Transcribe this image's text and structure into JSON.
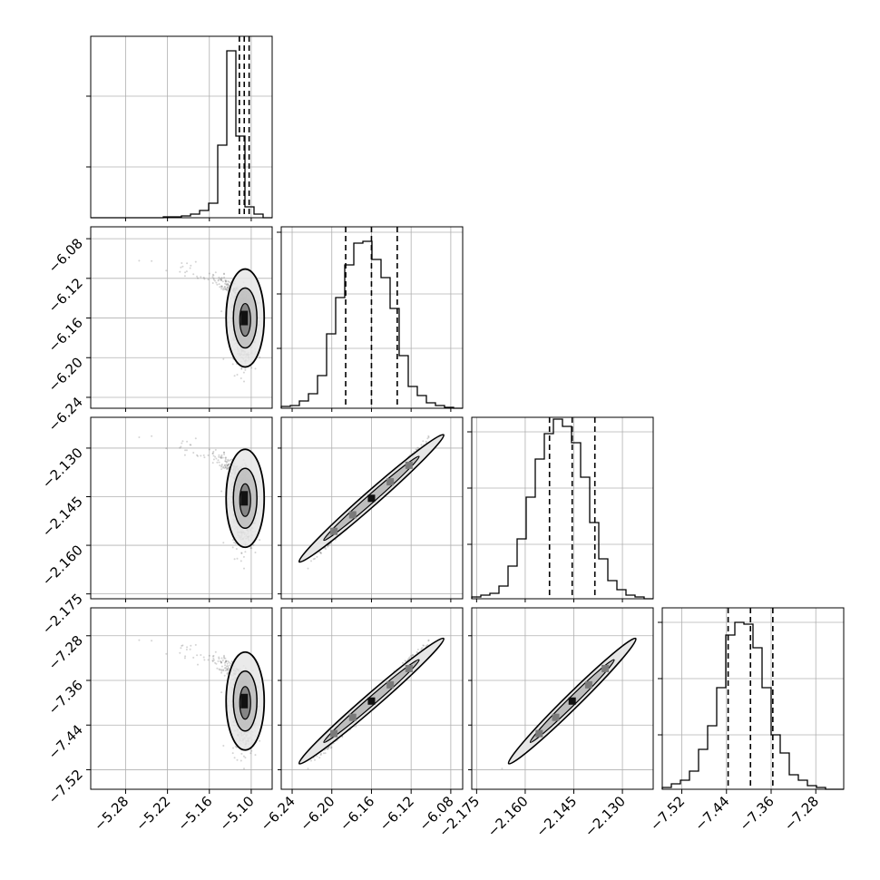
{
  "chart_data": {
    "type": "corner",
    "grid": true,
    "parameters": [
      {
        "range": [
          -5.33,
          -5.07
        ],
        "hist_y_ticks": [
          0.28,
          0.67
        ],
        "hist_bins": [
          0,
          0,
          0,
          0,
          0,
          0,
          0,
          0,
          0.005,
          0.005,
          0.01,
          0.02,
          0.04,
          0.08,
          0.4,
          0.92,
          0.45,
          0.06,
          0.02,
          0
        ],
        "quantiles": [
          -5.117,
          -5.11,
          -5.103
        ],
        "ticks": [
          -5.28,
          -5.22,
          -5.16,
          -5.1
        ],
        "tick_labels": [
          "−5.28",
          "−5.22",
          "−5.16",
          "−5.10"
        ]
      },
      {
        "range": [
          -6.251,
          -6.068
        ],
        "hist_y_ticks": [
          0.33,
          0.63,
          0.97
        ],
        "hist_bins": [
          0.01,
          0.015,
          0.04,
          0.08,
          0.18,
          0.41,
          0.61,
          0.79,
          0.91,
          0.92,
          0.82,
          0.72,
          0.55,
          0.29,
          0.12,
          0.07,
          0.03,
          0.015,
          0.005,
          0.0
        ],
        "quantiles": [
          -6.186,
          -6.16,
          -6.134
        ],
        "ticks": [
          -6.08,
          -6.12,
          -6.16,
          -6.2,
          -6.24
        ],
        "tick_labels": [
          "−6.08",
          "−6.12",
          "−6.16",
          "−6.20",
          "−6.24"
        ]
      },
      {
        "range": [
          -2.1765,
          -2.1205
        ],
        "hist_y_ticks": [
          0.3,
          0.61,
          0.92
        ],
        "hist_bins": [
          0.01,
          0.02,
          0.03,
          0.07,
          0.18,
          0.33,
          0.56,
          0.77,
          0.91,
          0.99,
          0.95,
          0.86,
          0.67,
          0.42,
          0.22,
          0.1,
          0.05,
          0.02,
          0.01,
          0.0
        ],
        "quantiles": [
          -2.1525,
          -2.1455,
          -2.1385
        ],
        "ticks": [
          -2.13,
          -2.145,
          -2.16,
          -2.175
        ],
        "tick_labels": [
          "−2.130",
          "−2.145",
          "−2.160",
          "−2.175"
        ]
      },
      {
        "range": [
          -7.555,
          -7.23
        ],
        "hist_y_ticks": [
          0.3,
          0.61,
          0.92
        ],
        "hist_bins": [
          0.01,
          0.03,
          0.05,
          0.1,
          0.22,
          0.35,
          0.56,
          0.85,
          0.92,
          0.91,
          0.78,
          0.56,
          0.3,
          0.2,
          0.08,
          0.05,
          0.02,
          0.01,
          0.0,
          0.0
        ],
        "quantiles": [
          -7.437,
          -7.397,
          -7.357
        ],
        "ticks": [
          -7.28,
          -7.36,
          -7.44,
          -7.52
        ],
        "tick_labels": [
          "−7.28",
          "−7.36",
          "−7.44",
          "−7.52"
        ]
      }
    ],
    "colors": {
      "line": "#000000",
      "grid": "#b0b0b0",
      "scatter": "#555555",
      "density_levels": [
        "#e6e6e6",
        "#bdbdbd",
        "#7a7a7a",
        "#111111"
      ]
    }
  }
}
